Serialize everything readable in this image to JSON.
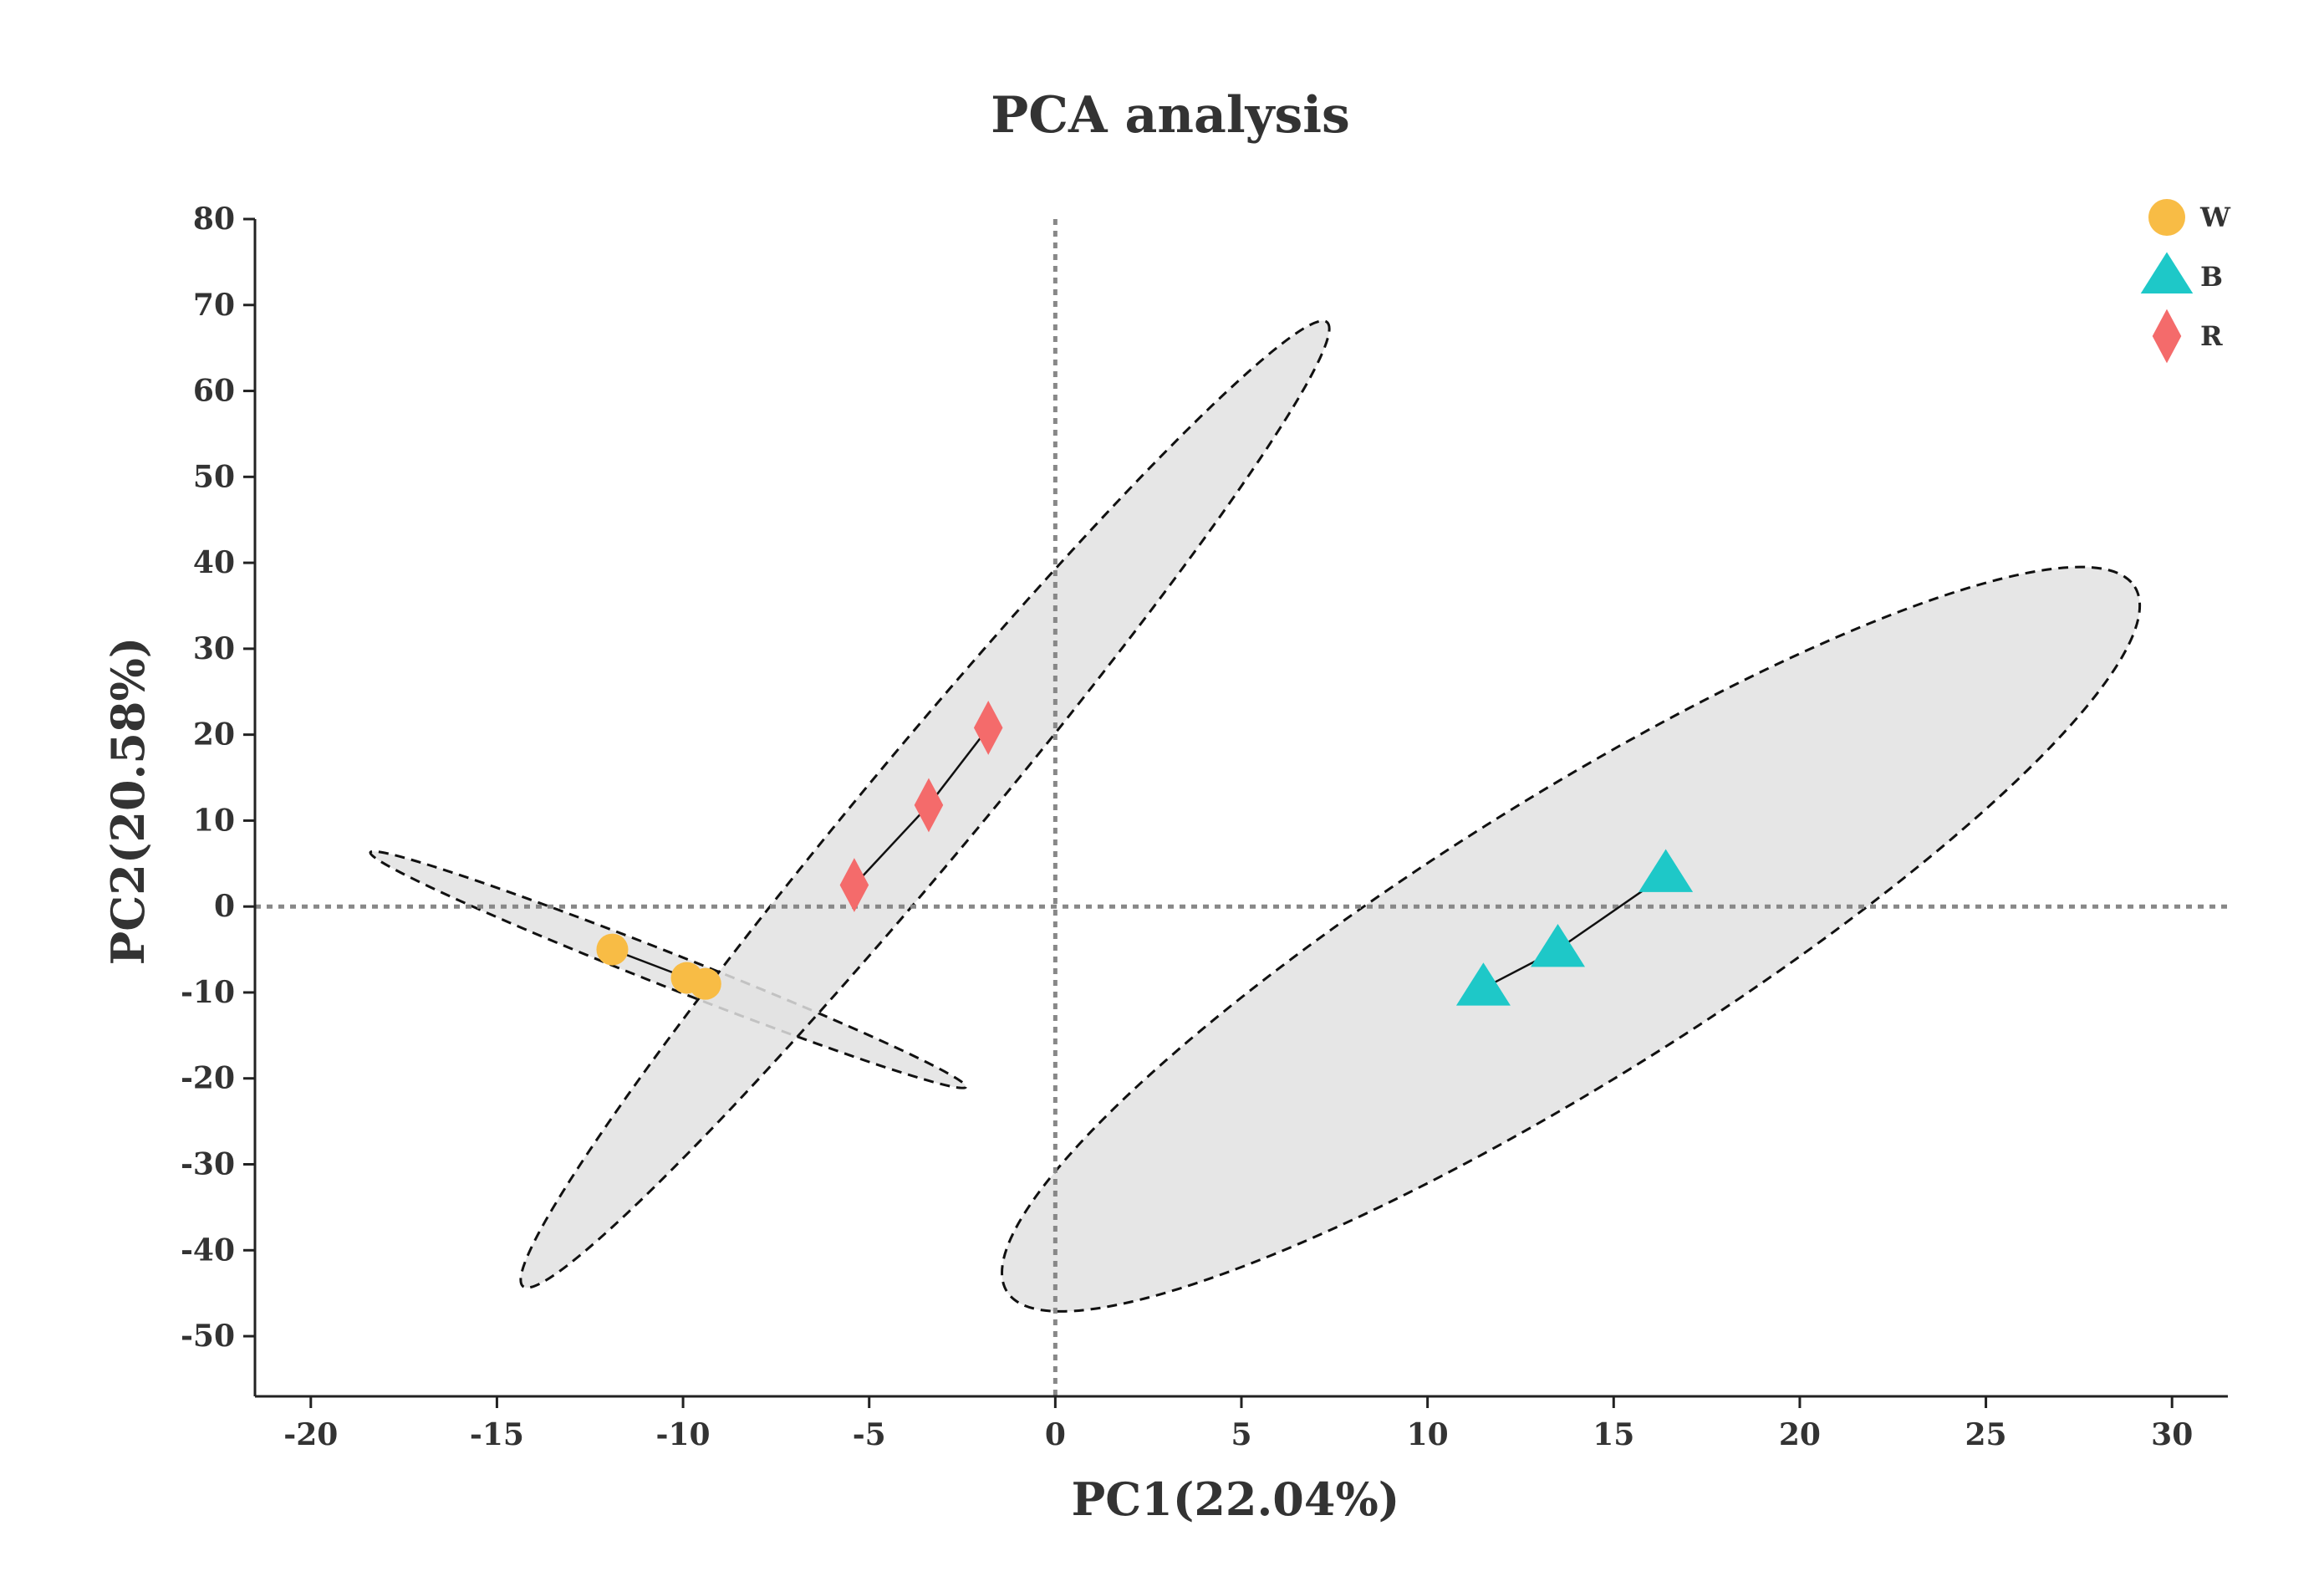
{
  "chart_data": {
    "type": "scatter",
    "title": "PCA analysis",
    "xlabel": "PC1(22.04%)",
    "ylabel": "PC2(20.58%)",
    "xlim": [
      -21.5,
      31.5
    ],
    "ylim": [
      -57,
      80
    ],
    "xticks": [
      -20,
      -15,
      -10,
      -5,
      0,
      5,
      10,
      15,
      20,
      25,
      30
    ],
    "yticks": [
      -50,
      -40,
      -30,
      -20,
      -10,
      0,
      10,
      20,
      30,
      40,
      50,
      60,
      70,
      80
    ],
    "legend_position": "top-right",
    "reference_lines": {
      "x": 0,
      "y": 0
    },
    "series": [
      {
        "name": "W",
        "marker": "circle",
        "color": "#F8BC45",
        "points": [
          {
            "x": -11.9,
            "y": -5.0
          },
          {
            "x": -9.9,
            "y": -8.3
          },
          {
            "x": -9.4,
            "y": -9.0
          }
        ],
        "ellipse": {
          "end1": [
            -18.4,
            6.3
          ],
          "end2": [
            -2.4,
            -21.0
          ],
          "half_width": 0.45
        }
      },
      {
        "name": "B",
        "marker": "triangle",
        "color": "#1EC8C8",
        "points": [
          {
            "x": 11.5,
            "y": -9.5
          },
          {
            "x": 13.5,
            "y": -5.0
          },
          {
            "x": 16.4,
            "y": 3.7
          }
        ],
        "ellipse": {
          "end1": [
            -1.3,
            -44.8
          ],
          "end2": [
            29.0,
            37.2
          ],
          "half_width": 3.8
        }
      },
      {
        "name": "R",
        "marker": "diamond",
        "color": "#F46B6B",
        "points": [
          {
            "x": -5.4,
            "y": 2.5
          },
          {
            "x": -3.4,
            "y": 11.8
          },
          {
            "x": -1.8,
            "y": 20.8
          }
        ],
        "ellipse": {
          "end1": [
            -14.3,
            -44.2
          ],
          "end2": [
            7.3,
            68.0
          ],
          "half_width": 1.5
        }
      }
    ]
  }
}
